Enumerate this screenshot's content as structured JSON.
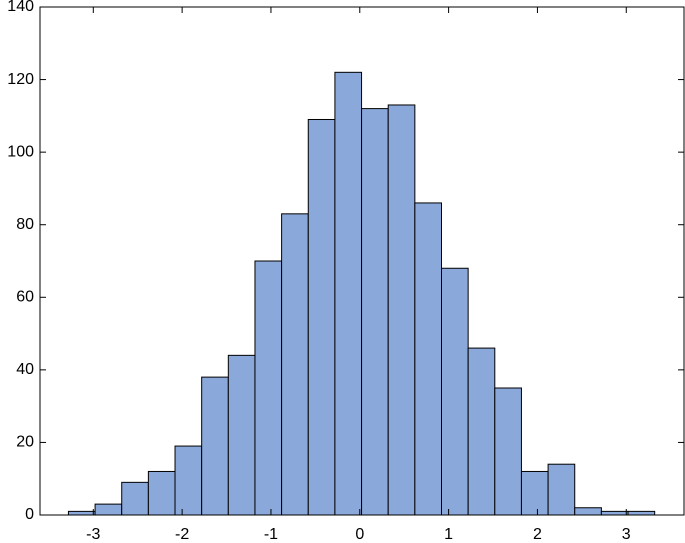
{
  "chart_data": {
    "type": "histogram",
    "bins": [
      -3.28,
      -2.98,
      -2.68,
      -2.38,
      -2.08,
      -1.78,
      -1.48,
      -1.18,
      -0.88,
      -0.58,
      -0.28,
      0.02,
      0.32,
      0.62,
      0.92,
      1.22,
      1.52,
      1.82,
      2.12,
      2.42,
      2.72,
      3.02,
      3.32
    ],
    "values": [
      1,
      3,
      9,
      12,
      19,
      38,
      44,
      70,
      83,
      109,
      122,
      112,
      113,
      86,
      68,
      46,
      35,
      12,
      14,
      2,
      1,
      1
    ],
    "color": "#8aa8d9",
    "xlim": [
      -3.6,
      3.65
    ],
    "xticks": [
      -3,
      -2,
      -1,
      0,
      1,
      2,
      3
    ],
    "ylim": [
      0,
      140
    ],
    "yticks": [
      0,
      20,
      40,
      60,
      80,
      100,
      120,
      140
    ]
  }
}
